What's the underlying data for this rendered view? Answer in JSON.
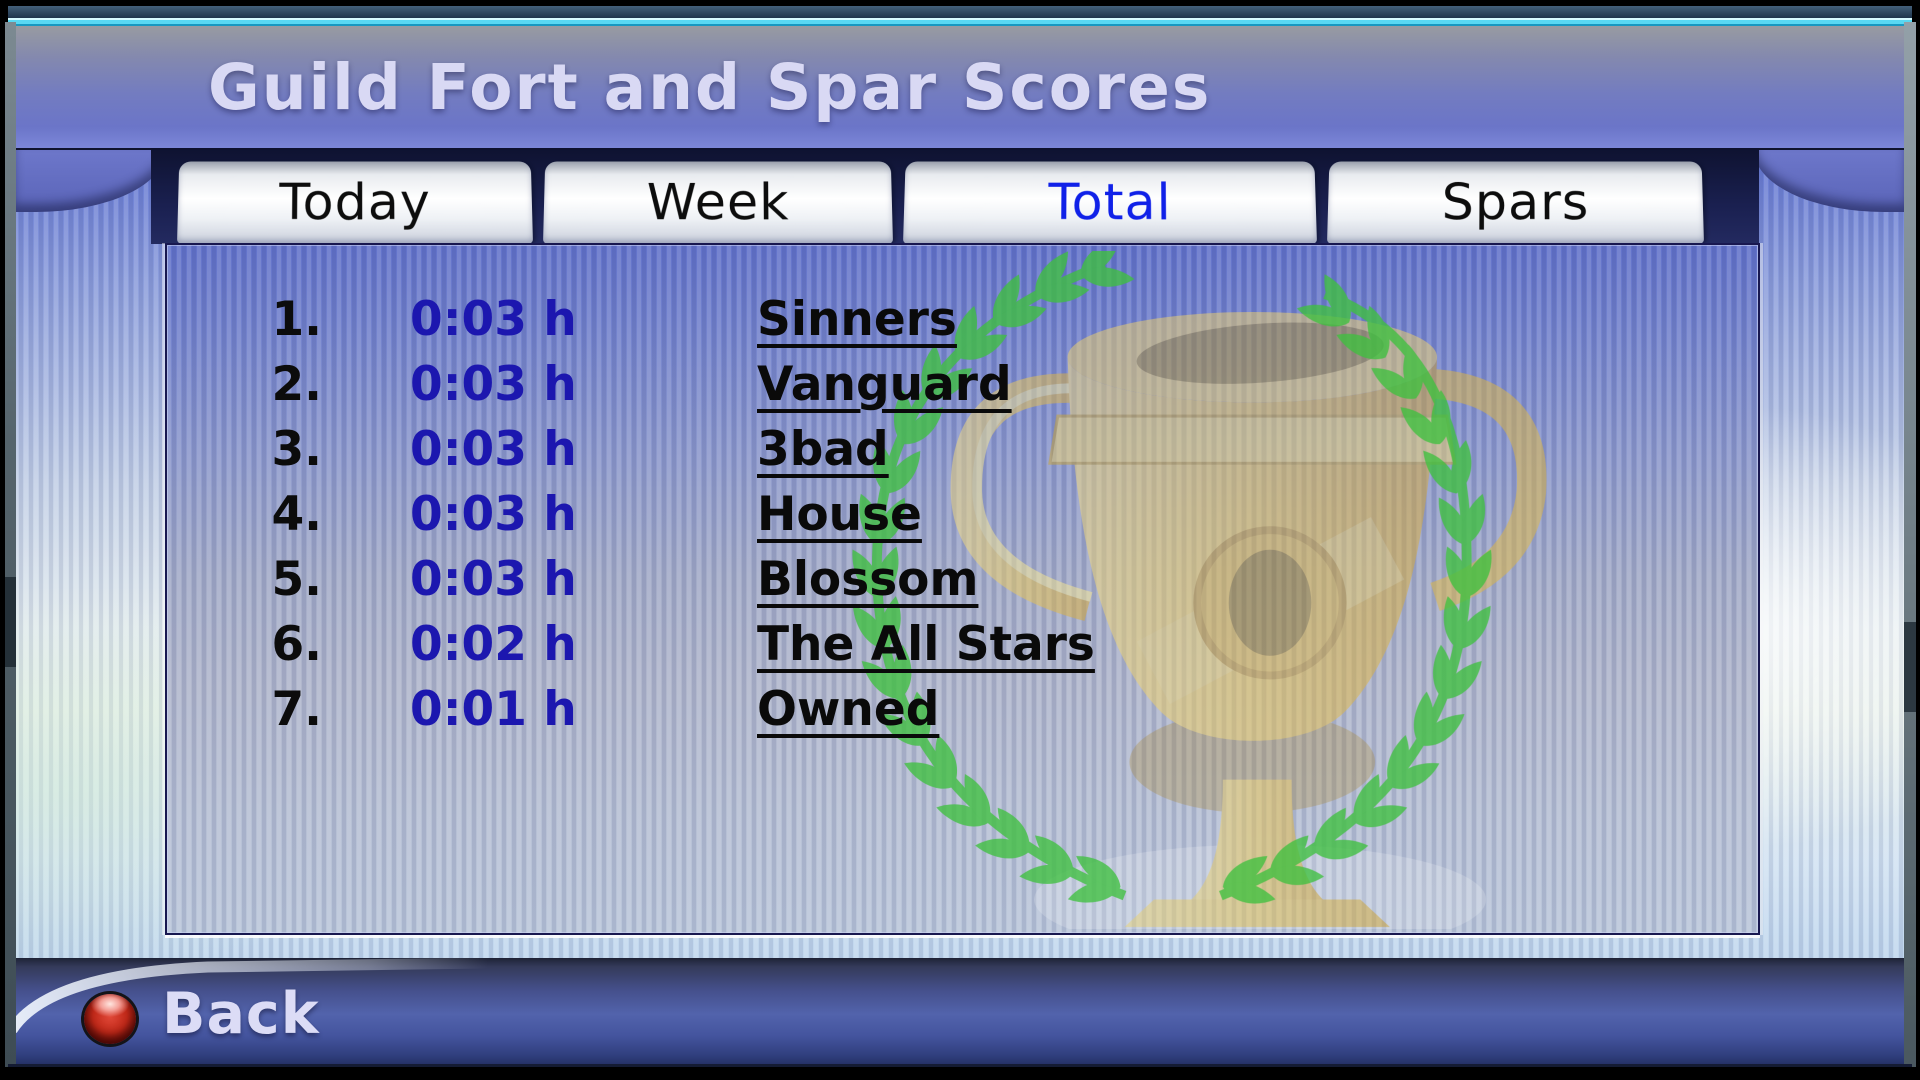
{
  "window": {
    "title": "Guild Fort and Spar Scores"
  },
  "tabs": [
    {
      "label": "Today",
      "active": false
    },
    {
      "label": "Week",
      "active": false
    },
    {
      "label": "Total",
      "active": true
    },
    {
      "label": "Spars",
      "active": false
    }
  ],
  "scoreboard": {
    "rows": [
      {
        "rank": "1.",
        "time": "0:03 h",
        "guild": "Sinners"
      },
      {
        "rank": "2.",
        "time": "0:03 h",
        "guild": "Vanguard"
      },
      {
        "rank": "3.",
        "time": "0:03 h",
        "guild": "3bad"
      },
      {
        "rank": "4.",
        "time": "0:03 h",
        "guild": "House"
      },
      {
        "rank": "5.",
        "time": "0:03 h",
        "guild": "Blossom"
      },
      {
        "rank": "6.",
        "time": "0:02 h",
        "guild": "The All Stars"
      },
      {
        "rank": "7.",
        "time": "0:01 h",
        "guild": "Owned"
      }
    ]
  },
  "footer": {
    "back_label": "Back"
  },
  "icons": {
    "back_button": "red-orb-icon",
    "watermark": "trophy-laurel-wreath"
  },
  "colors": {
    "time_text": "#1c17af",
    "active_tab_text": "#1021e8",
    "tab_text": "#0d0d0d",
    "title_text": "#d9d9f4",
    "wreath_green": "#3fc03f",
    "trophy_gold": "#eec84e"
  }
}
